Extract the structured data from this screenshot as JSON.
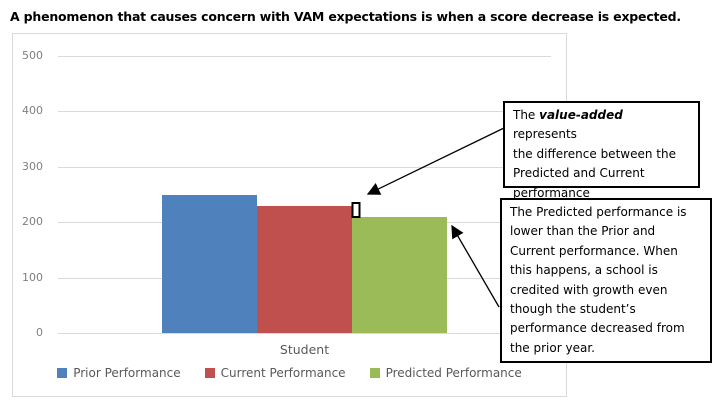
{
  "page": {
    "title": "A phenomenon that causes concern with VAM expectations is when a score decrease is expected."
  },
  "chart_data": {
    "type": "bar",
    "title": "A phenomenon that causes concern with VAM expectations is when a score decrease is expected.",
    "categories": [
      "Student"
    ],
    "series": [
      {
        "name": "Prior Performance",
        "color": "#4f81bd",
        "values": [
          250
        ]
      },
      {
        "name": "Current Performance",
        "color": "#c0504d",
        "values": [
          230
        ]
      },
      {
        "name": "Predicted Performance",
        "color": "#9bbb59",
        "values": [
          210
        ]
      }
    ],
    "xlabel": "Student",
    "ylabel": "",
    "ylim": [
      0,
      500
    ],
    "yticks": [
      0,
      100,
      200,
      300,
      400,
      500
    ],
    "grid": true,
    "gridline_color": "#d9d9d9",
    "tick_label_color": "#7f7f7f",
    "legend_position": "bottom",
    "annotations": {
      "bracket": {
        "marks": "difference between Current and Predicted tops",
        "from_value": 230,
        "to_value": 210
      },
      "box1": {
        "prefix": "The ",
        "emphasis": "value-added",
        "suffix": " represents\nthe difference between the\nPredicted and Current\nperformance"
      },
      "box2": {
        "text": "The Predicted performance is\nlower than the Prior and\nCurrent performance. When\nthis happens, a school is\ncredited with growth even\nthough the student’s\nperformance decreased from\nthe prior year."
      }
    }
  }
}
